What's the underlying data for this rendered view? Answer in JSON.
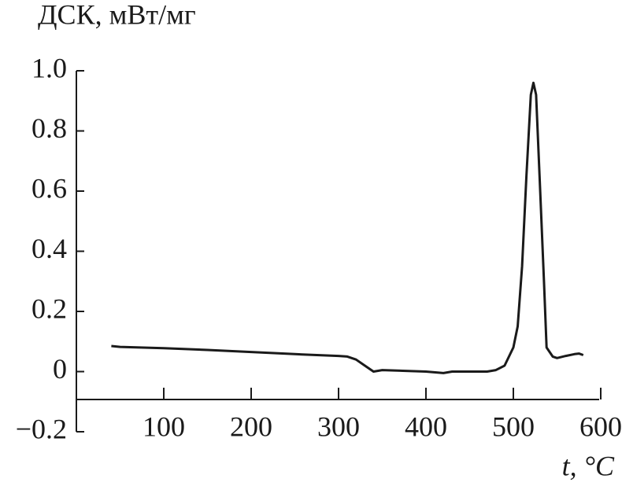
{
  "chart_data": {
    "type": "line",
    "title": "ДСК, мВт/мг",
    "x_label": "t, °C",
    "x": [
      40,
      50,
      100,
      150,
      200,
      250,
      300,
      310,
      320,
      330,
      340,
      350,
      380,
      400,
      420,
      430,
      470,
      480,
      490,
      500,
      505,
      510,
      515,
      520,
      523,
      526,
      530,
      535,
      538,
      545,
      550,
      560,
      570,
      575,
      580
    ],
    "series": [
      {
        "color": "#1a1a1a",
        "values": [
          0.085,
          0.082,
          0.078,
          0.072,
          0.065,
          0.058,
          0.052,
          0.05,
          0.04,
          0.02,
          0.0,
          0.005,
          0.002,
          0.0,
          -0.005,
          0.0,
          0.0,
          0.005,
          0.02,
          0.08,
          0.15,
          0.35,
          0.65,
          0.92,
          0.96,
          0.92,
          0.65,
          0.3,
          0.08,
          0.05,
          0.045,
          0.052,
          0.058,
          0.06,
          0.055
        ]
      }
    ],
    "xlim": [
      0,
      600
    ],
    "xticks": [
      100,
      200,
      300,
      400,
      500,
      600
    ],
    "ylim": [
      -0.2,
      1.0
    ],
    "yticks": [
      {
        "value": -0.2,
        "label": "−0.2"
      },
      0,
      0.2,
      0.4,
      0.6,
      0.8,
      {
        "value": 1.0,
        "label": "1.0"
      }
    ]
  }
}
